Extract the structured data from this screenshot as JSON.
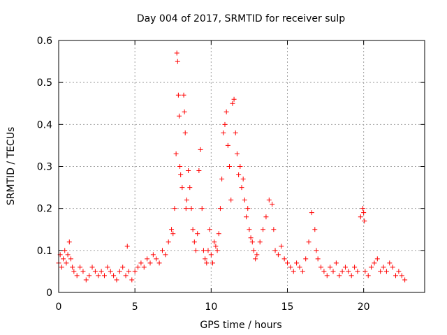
{
  "chart_data": {
    "type": "scatter",
    "title": "Day 004 of 2017, SRMTID for receiver sulp",
    "xlabel": "GPS time / hours",
    "ylabel": "SRMTID / TECUs",
    "xlim": [
      0,
      24
    ],
    "ylim": [
      0,
      0.6
    ],
    "xticks": [
      "0",
      "5",
      "10",
      "15",
      "20"
    ],
    "yticks": [
      "0",
      "0.1",
      "0.2",
      "0.3",
      "0.4",
      "0.5",
      "0.6"
    ],
    "grid": true,
    "marker": "+",
    "series_color": "#ff0000",
    "series": [
      {
        "name": "SRMTID",
        "x": [
          0.0,
          0.1,
          0.2,
          0.3,
          0.4,
          0.5,
          0.6,
          0.7,
          0.8,
          0.9,
          1.0,
          1.2,
          1.4,
          1.6,
          1.8,
          2.0,
          2.2,
          2.4,
          2.6,
          2.8,
          3.0,
          3.2,
          3.4,
          3.6,
          3.8,
          4.0,
          4.2,
          4.4,
          4.5,
          4.6,
          4.8,
          5.0,
          5.2,
          5.4,
          5.6,
          5.8,
          6.0,
          6.2,
          6.4,
          6.6,
          6.8,
          7.0,
          7.2,
          7.4,
          7.5,
          7.6,
          7.7,
          7.75,
          7.8,
          7.85,
          7.9,
          7.95,
          8.0,
          8.1,
          8.2,
          8.25,
          8.3,
          8.35,
          8.4,
          8.5,
          8.6,
          8.7,
          8.8,
          8.9,
          9.0,
          9.1,
          9.2,
          9.3,
          9.4,
          9.5,
          9.6,
          9.7,
          9.8,
          9.9,
          10.0,
          10.1,
          10.2,
          10.3,
          10.4,
          10.5,
          10.6,
          10.7,
          10.8,
          10.9,
          11.0,
          11.1,
          11.2,
          11.3,
          11.4,
          11.5,
          11.6,
          11.7,
          11.8,
          11.9,
          12.0,
          12.1,
          12.2,
          12.3,
          12.4,
          12.5,
          12.6,
          12.7,
          12.8,
          12.9,
          13.0,
          13.2,
          13.4,
          13.6,
          13.8,
          14.0,
          14.1,
          14.2,
          14.4,
          14.6,
          14.8,
          15.0,
          15.2,
          15.4,
          15.6,
          15.8,
          16.0,
          16.2,
          16.4,
          16.6,
          16.8,
          16.9,
          17.0,
          17.2,
          17.4,
          17.6,
          17.8,
          18.0,
          18.2,
          18.4,
          18.6,
          18.8,
          19.0,
          19.2,
          19.4,
          19.6,
          19.8,
          19.95,
          20.0,
          20.05,
          20.1,
          20.3,
          20.5,
          20.7,
          20.9,
          21.1,
          21.3,
          21.5,
          21.7,
          21.9,
          22.1,
          22.3,
          22.5,
          22.7
        ],
        "y": [
          0.07,
          0.09,
          0.06,
          0.08,
          0.1,
          0.07,
          0.09,
          0.12,
          0.08,
          0.06,
          0.05,
          0.04,
          0.06,
          0.05,
          0.03,
          0.04,
          0.06,
          0.05,
          0.04,
          0.05,
          0.04,
          0.06,
          0.05,
          0.04,
          0.03,
          0.05,
          0.06,
          0.04,
          0.11,
          0.05,
          0.03,
          0.05,
          0.06,
          0.07,
          0.06,
          0.08,
          0.07,
          0.09,
          0.08,
          0.07,
          0.1,
          0.09,
          0.12,
          0.15,
          0.14,
          0.2,
          0.33,
          0.57,
          0.55,
          0.47,
          0.42,
          0.3,
          0.28,
          0.25,
          0.47,
          0.43,
          0.38,
          0.2,
          0.22,
          0.29,
          0.25,
          0.2,
          0.15,
          0.12,
          0.1,
          0.14,
          0.29,
          0.34,
          0.2,
          0.1,
          0.08,
          0.07,
          0.1,
          0.15,
          0.09,
          0.07,
          0.12,
          0.11,
          0.1,
          0.14,
          0.2,
          0.27,
          0.38,
          0.4,
          0.43,
          0.35,
          0.3,
          0.22,
          0.45,
          0.46,
          0.38,
          0.33,
          0.28,
          0.3,
          0.25,
          0.27,
          0.22,
          0.18,
          0.2,
          0.15,
          0.13,
          0.12,
          0.1,
          0.08,
          0.09,
          0.12,
          0.15,
          0.18,
          0.22,
          0.21,
          0.15,
          0.1,
          0.09,
          0.11,
          0.08,
          0.07,
          0.06,
          0.05,
          0.07,
          0.06,
          0.05,
          0.08,
          0.12,
          0.19,
          0.15,
          0.1,
          0.08,
          0.06,
          0.05,
          0.04,
          0.06,
          0.05,
          0.07,
          0.04,
          0.05,
          0.06,
          0.05,
          0.04,
          0.06,
          0.05,
          0.18,
          0.2,
          0.19,
          0.17,
          0.05,
          0.04,
          0.06,
          0.07,
          0.08,
          0.05,
          0.06,
          0.05,
          0.07,
          0.06,
          0.04,
          0.05,
          0.04,
          0.03
        ]
      }
    ]
  }
}
